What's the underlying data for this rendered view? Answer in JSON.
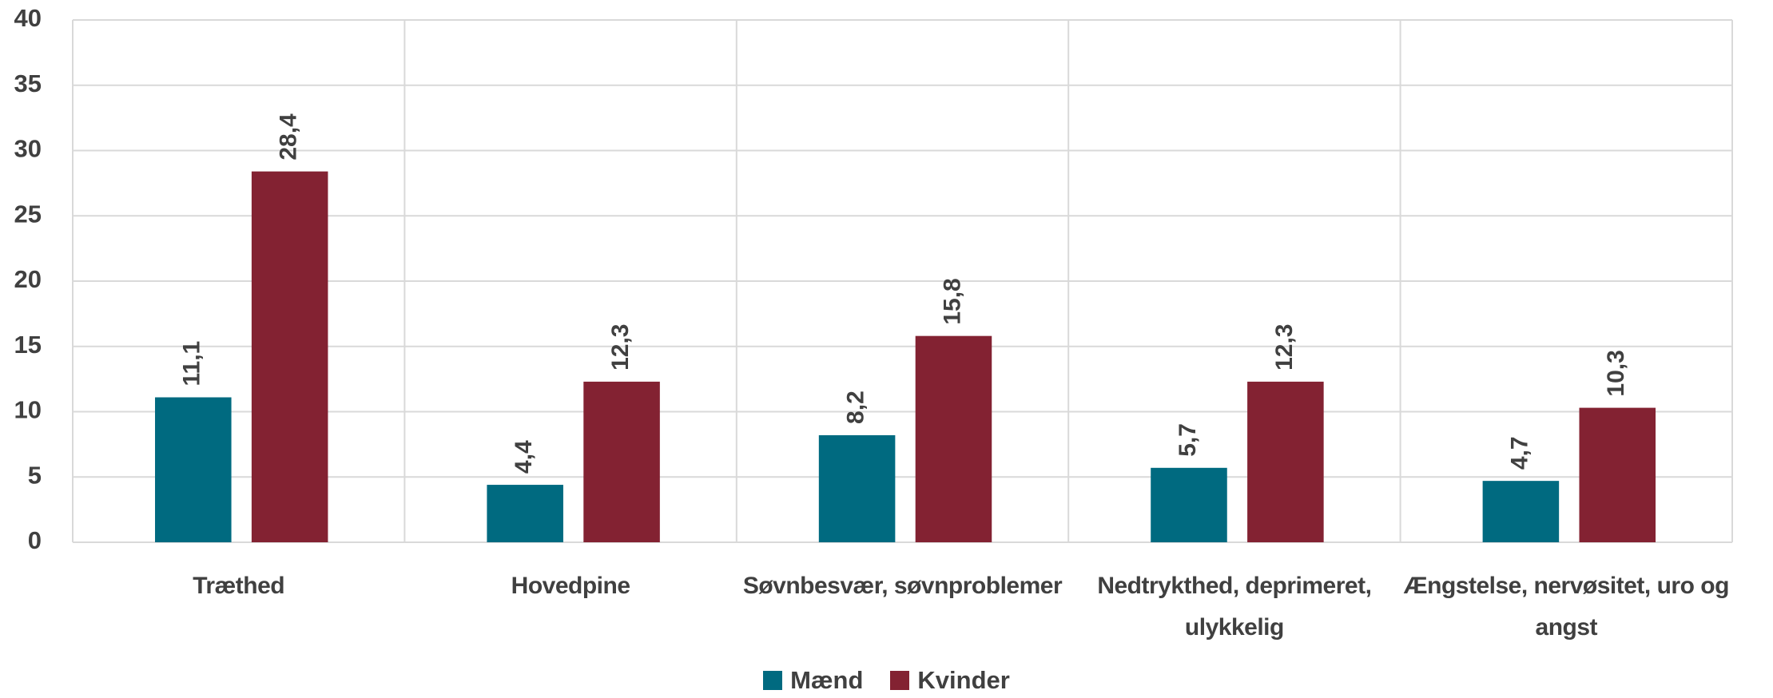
{
  "chart_data": {
    "type": "bar",
    "categories": [
      "Træthed",
      "Hovedpine",
      "Søvnbesvær, søvnproblemer",
      "Nedtrykthed, deprimeret, ulykkelig",
      "Ængstelse, nervøsitet, uro og angst"
    ],
    "series": [
      {
        "name": "Mænd",
        "color": "#006a80",
        "values": [
          11.1,
          4.4,
          8.2,
          5.7,
          4.7
        ],
        "value_labels": [
          "11,1",
          "4,4",
          "8,2",
          "5,7",
          "4,7"
        ]
      },
      {
        "name": "Kvinder",
        "color": "#832232",
        "values": [
          28.4,
          12.3,
          15.8,
          12.3,
          10.3
        ],
        "value_labels": [
          "28,4",
          "12,3",
          "15,8",
          "12,3",
          "10,3"
        ]
      }
    ],
    "ylim": [
      0,
      40
    ],
    "yticks": [
      0,
      5,
      10,
      15,
      20,
      25,
      30,
      35,
      40
    ],
    "grid": true,
    "legend": "bottom"
  }
}
